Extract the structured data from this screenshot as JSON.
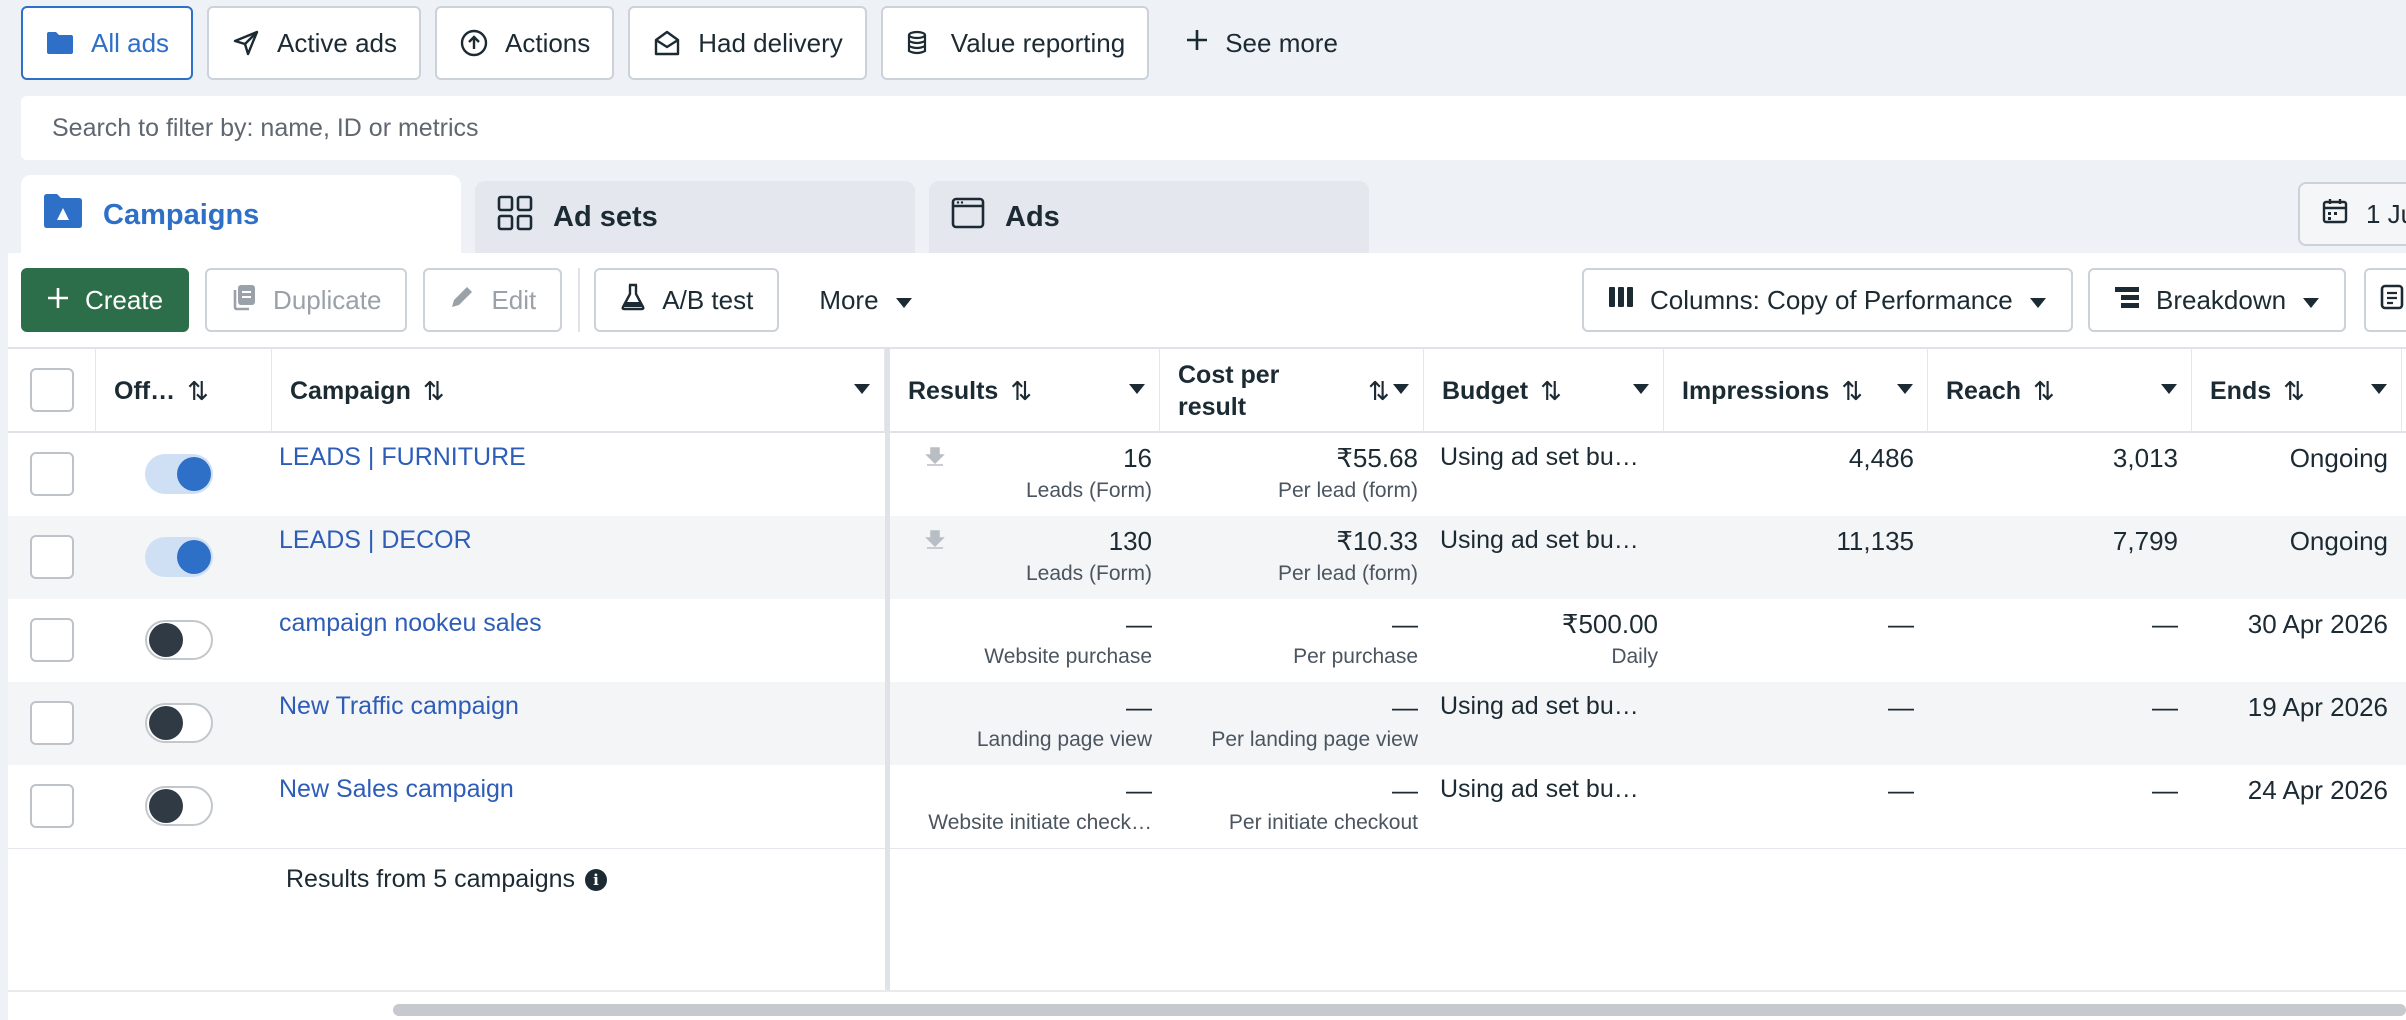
{
  "filters": {
    "all_ads": "All ads",
    "active_ads": "Active ads",
    "actions": "Actions",
    "had_delivery": "Had delivery",
    "value_reporting": "Value reporting",
    "see_more": "See more"
  },
  "search": {
    "placeholder": "Search to filter by: name, ID or metrics"
  },
  "tabs": {
    "campaigns": "Campaigns",
    "ad_sets": "Ad sets",
    "ads": "Ads"
  },
  "date_range": {
    "label": "1 Ju"
  },
  "toolbar": {
    "create": "Create",
    "duplicate": "Duplicate",
    "edit": "Edit",
    "ab_test": "A/B test",
    "more": "More",
    "columns": "Columns: Copy of Performance",
    "breakdown": "Breakdown"
  },
  "columns": {
    "off_on": "Off…",
    "campaign": "Campaign",
    "results": "Results",
    "cost_per_result_1": "Cost per",
    "cost_per_result_2": "result",
    "budget": "Budget",
    "impressions": "Impressions",
    "reach": "Reach",
    "ends": "Ends"
  },
  "rows": [
    {
      "name": "LEADS | FURNITURE",
      "status": "on",
      "results": "16",
      "results_sub": "Leads (Form)",
      "cost": "₹55.68",
      "cost_sub": "Per lead (form)",
      "budget": "Using ad set bu…",
      "budget_sub": "",
      "impressions": "4,486",
      "reach": "3,013",
      "ends": "Ongoing"
    },
    {
      "name": "LEADS | DECOR",
      "status": "on",
      "results": "130",
      "results_sub": "Leads (Form)",
      "cost": "₹10.33",
      "cost_sub": "Per lead (form)",
      "budget": "Using ad set bu…",
      "budget_sub": "",
      "impressions": "11,135",
      "reach": "7,799",
      "ends": "Ongoing"
    },
    {
      "name": "campaign nookeu sales",
      "status": "off",
      "results": "—",
      "results_sub": "Website purchase",
      "cost": "—",
      "cost_sub": "Per purchase",
      "budget": "₹500.00",
      "budget_sub": "Daily",
      "impressions": "—",
      "reach": "—",
      "ends": "30 Apr 2026"
    },
    {
      "name": "New Traffic campaign",
      "status": "off",
      "results": "—",
      "results_sub": "Landing page view",
      "cost": "—",
      "cost_sub": "Per landing page view",
      "budget": "Using ad set bu…",
      "budget_sub": "",
      "impressions": "—",
      "reach": "—",
      "ends": "19 Apr 2026"
    },
    {
      "name": "New Sales campaign",
      "status": "off",
      "results": "—",
      "results_sub": "Website initiate check…",
      "cost": "—",
      "cost_sub": "Per initiate checkout",
      "budget": "Using ad set bu…",
      "budget_sub": "",
      "impressions": "—",
      "reach": "—",
      "ends": "24 Apr 2026"
    }
  ],
  "footer": {
    "summary": "Results from 5 campaigns"
  },
  "colors": {
    "accent": "#2e6fc7",
    "create_green": "#2c6e49",
    "link": "#2e5db8"
  }
}
